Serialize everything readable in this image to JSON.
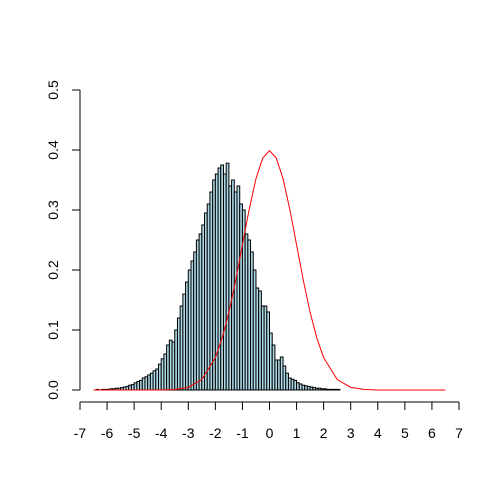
{
  "chart_data": {
    "type": "bar",
    "title": "",
    "xlabel": "",
    "ylabel": "",
    "xlim": [
      -7,
      7
    ],
    "ylim": [
      0,
      0.5
    ],
    "x_ticks": [
      "-7",
      "-6",
      "-5",
      "-4",
      "-3",
      "-2",
      "-1",
      "0",
      "1",
      "2",
      "3",
      "4",
      "5",
      "6",
      "7"
    ],
    "y_ticks": [
      "0.0",
      "0.1",
      "0.2",
      "0.3",
      "0.4",
      "0.5"
    ],
    "bin_width": 0.1,
    "histogram": {
      "bin_start": [
        -6.4,
        -6.3,
        -6.2,
        -6.1,
        -6.0,
        -5.9,
        -5.8,
        -5.7,
        -5.6,
        -5.5,
        -5.4,
        -5.3,
        -5.2,
        -5.1,
        -5.0,
        -4.9,
        -4.8,
        -4.7,
        -4.6,
        -4.5,
        -4.4,
        -4.3,
        -4.2,
        -4.1,
        -4.0,
        -3.9,
        -3.8,
        -3.7,
        -3.6,
        -3.5,
        -3.4,
        -3.3,
        -3.2,
        -3.1,
        -3.0,
        -2.9,
        -2.8,
        -2.7,
        -2.6,
        -2.5,
        -2.4,
        -2.3,
        -2.2,
        -2.1,
        -2.0,
        -1.9,
        -1.8,
        -1.7,
        -1.6,
        -1.5,
        -1.4,
        -1.3,
        -1.2,
        -1.1,
        -1.0,
        -0.9,
        -0.8,
        -0.7,
        -0.6,
        -0.5,
        -0.4,
        -0.3,
        -0.2,
        -0.1,
        0.0,
        0.1,
        0.2,
        0.3,
        0.4,
        0.5,
        0.6,
        0.7,
        0.8,
        0.9,
        1.0,
        1.1,
        1.2,
        1.3,
        1.4,
        1.5,
        1.6,
        1.7,
        1.8,
        1.9,
        2.0,
        2.1,
        2.2,
        2.3,
        2.4,
        2.5
      ],
      "density": [
        0.001,
        0.0,
        0.001,
        0.001,
        0.001,
        0.002,
        0.002,
        0.003,
        0.003,
        0.004,
        0.005,
        0.006,
        0.008,
        0.009,
        0.012,
        0.014,
        0.016,
        0.02,
        0.022,
        0.025,
        0.028,
        0.032,
        0.035,
        0.043,
        0.052,
        0.06,
        0.075,
        0.083,
        0.08,
        0.1,
        0.12,
        0.14,
        0.16,
        0.18,
        0.2,
        0.215,
        0.23,
        0.25,
        0.26,
        0.275,
        0.295,
        0.31,
        0.33,
        0.35,
        0.36,
        0.37,
        0.375,
        0.36,
        0.378,
        0.34,
        0.35,
        0.33,
        0.34,
        0.31,
        0.3,
        0.26,
        0.25,
        0.23,
        0.2,
        0.17,
        0.165,
        0.14,
        0.14,
        0.13,
        0.095,
        0.075,
        0.05,
        0.05,
        0.055,
        0.04,
        0.028,
        0.02,
        0.018,
        0.016,
        0.012,
        0.01,
        0.008,
        0.007,
        0.006,
        0.005,
        0.004,
        0.003,
        0.003,
        0.002,
        0.002,
        0.001,
        0.001,
        0.001,
        0.001,
        0.001
      ]
    },
    "curve": {
      "color": "#ff0000",
      "x": [
        -6.5,
        -4.0,
        -3.5,
        -3.0,
        -2.5,
        -2.0,
        -1.75,
        -1.5,
        -1.25,
        -1.0,
        -0.75,
        -0.5,
        -0.25,
        0.0,
        0.25,
        0.5,
        0.75,
        1.0,
        1.25,
        1.5,
        1.75,
        2.0,
        2.5,
        3.0,
        3.5,
        4.0,
        5.0,
        6.5
      ],
      "y": [
        0.0,
        0.0001,
        0.0009,
        0.0044,
        0.0175,
        0.054,
        0.0863,
        0.1295,
        0.1826,
        0.242,
        0.3011,
        0.3521,
        0.3867,
        0.3989,
        0.3867,
        0.3521,
        0.3011,
        0.242,
        0.1826,
        0.1295,
        0.0863,
        0.054,
        0.0175,
        0.0044,
        0.0009,
        0.0001,
        0.0,
        0.0
      ]
    },
    "bar_fill": "#add8e6",
    "bar_stroke": "#000000",
    "grid": false,
    "legend": "none"
  }
}
